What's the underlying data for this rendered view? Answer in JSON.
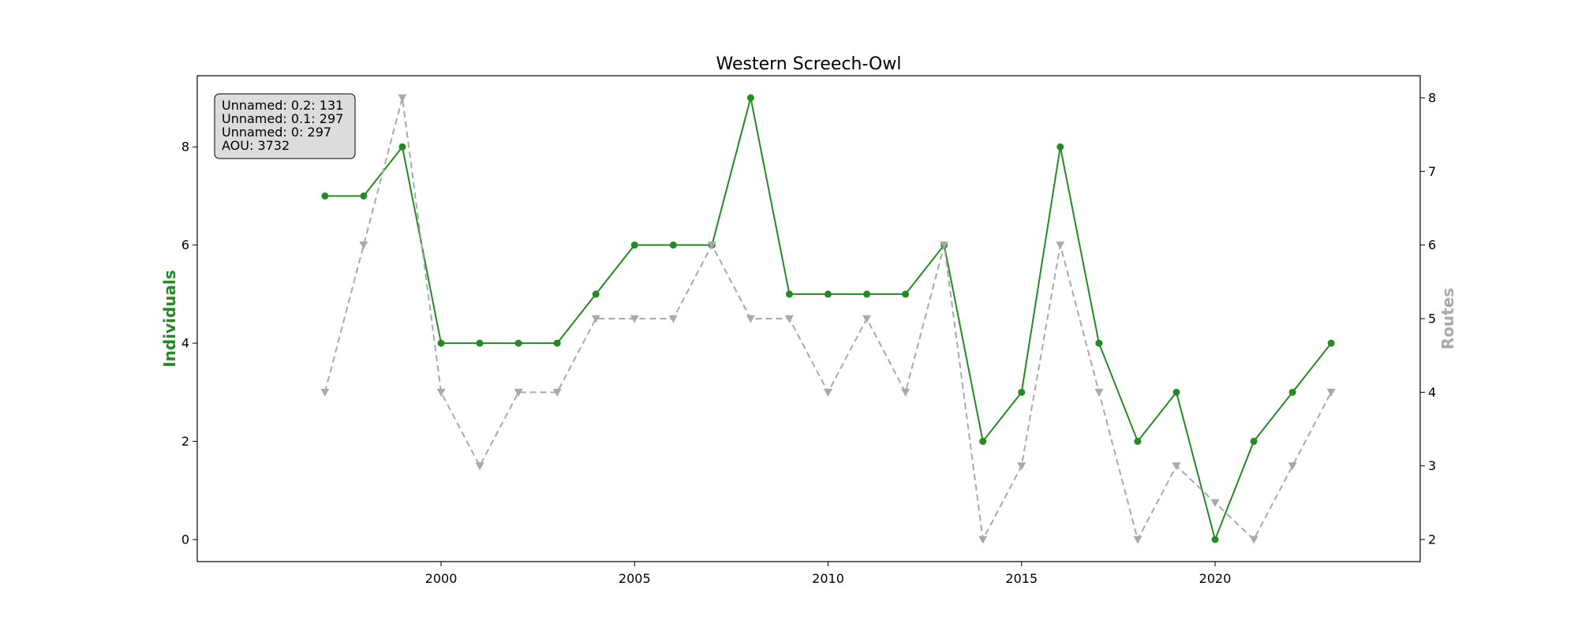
{
  "chart_data": {
    "type": "line",
    "title": "Western Screech-Owl",
    "ylabel_left": "Individuals",
    "ylabel_right": "Routes",
    "x": [
      1997,
      1998,
      1999,
      2000,
      2001,
      2002,
      2003,
      2004,
      2005,
      2006,
      2007,
      2008,
      2009,
      2010,
      2011,
      2012,
      2013,
      2014,
      2015,
      2016,
      2017,
      2018,
      2019,
      2020,
      2021,
      2022,
      2023
    ],
    "xticks": [
      2000,
      2005,
      2010,
      2015,
      2020
    ],
    "xlim": [
      1993.7,
      2025.3
    ],
    "ylim_left": [
      -0.45,
      9.45
    ],
    "ylim_right": [
      1.7,
      8.3
    ],
    "yticks_left": [
      0,
      2,
      4,
      6,
      8
    ],
    "yticks_right": [
      2,
      3,
      4,
      5,
      6,
      7,
      8
    ],
    "grid": false,
    "series": [
      {
        "axis": "left",
        "color": "#228b22",
        "style": "solid",
        "marker": "circle",
        "values": [
          7,
          7,
          8,
          4,
          4,
          4,
          4,
          5,
          6,
          6,
          6,
          9,
          5,
          5,
          5,
          5,
          6,
          2,
          3,
          8,
          4,
          2,
          3,
          0,
          2,
          3,
          4
        ]
      },
      {
        "axis": "right",
        "color": "#a9a9a9",
        "style": "dashed",
        "marker": "triangle-down",
        "values": [
          4,
          6,
          8,
          4,
          3,
          4,
          4,
          5,
          5,
          5,
          6,
          5,
          5,
          4,
          5,
          4,
          6,
          2,
          3,
          6,
          4,
          2,
          3,
          2.5,
          2,
          3,
          4
        ]
      }
    ],
    "info_box": {
      "lines": [
        "Unnamed: 0.2: 131",
        "Unnamed: 0.1: 297",
        "Unnamed: 0: 297",
        "AOU: 3732"
      ],
      "placement": "top-left"
    }
  }
}
